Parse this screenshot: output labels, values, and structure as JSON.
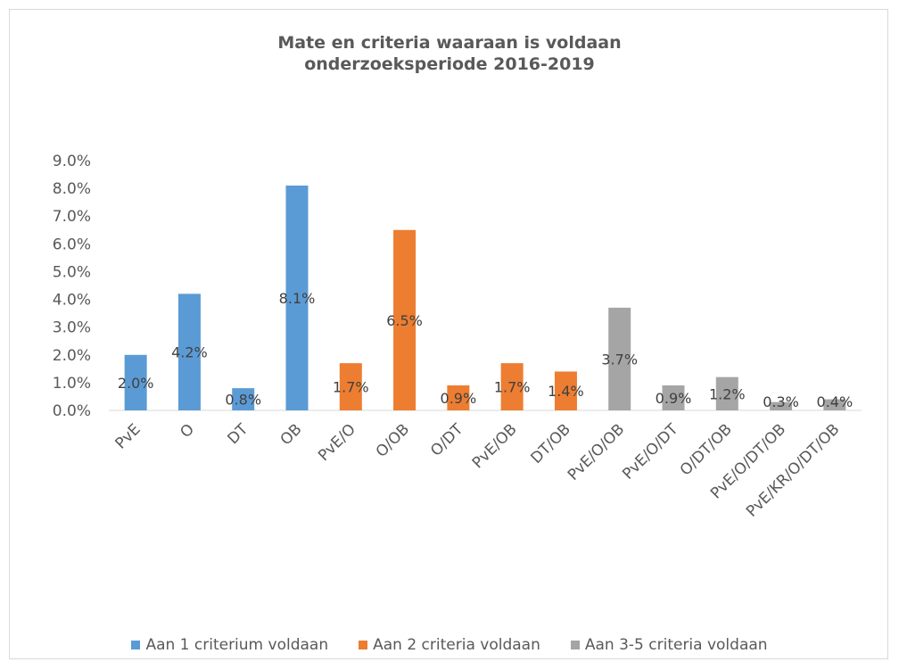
{
  "chart_data": {
    "type": "bar",
    "title": "Mate en criteria waaraan is voldaan\nonderzoeksperiode 2016-2019",
    "title_lines": [
      "Mate en criteria waaraan is voldaan",
      "onderzoeksperiode 2016-2019"
    ],
    "xlabel": "",
    "ylabel": "",
    "ylim": [
      0,
      9
    ],
    "y_ticks": [
      "0.0%",
      "1.0%",
      "2.0%",
      "3.0%",
      "4.0%",
      "5.0%",
      "6.0%",
      "7.0%",
      "8.0%",
      "9.0%"
    ],
    "grid": false,
    "legend_position": "bottom",
    "categories": [
      "PvE",
      "O",
      "DT",
      "OB",
      "PvE/O",
      "O/OB",
      "O/DT",
      "PvE/OB",
      "DT/OB",
      "PvE/O/OB",
      "PvE/O/DT",
      "O/DT/OB",
      "PvE/O/DT/OB",
      "PvE/KR/O/DT/OB"
    ],
    "values": [
      2.0,
      4.2,
      0.8,
      8.1,
      1.7,
      6.5,
      0.9,
      1.7,
      1.4,
      3.7,
      0.9,
      1.2,
      0.3,
      0.4
    ],
    "data_labels": [
      "2.0%",
      "4.2%",
      "0.8%",
      "8.1%",
      "1.7%",
      "6.5%",
      "0.9%",
      "1.7%",
      "1.4%",
      "3.7%",
      "0.9%",
      "1.2%",
      "0.3%",
      "0.4%"
    ],
    "group": [
      0,
      0,
      0,
      0,
      1,
      1,
      1,
      1,
      1,
      2,
      2,
      2,
      2,
      2
    ],
    "series": [
      {
        "name": "Aan 1 criterium voldaan",
        "color": "#5b9bd5"
      },
      {
        "name": "Aan 2 criteria voldaan",
        "color": "#ed7d31"
      },
      {
        "name": "Aan 3-5 criteria voldaan",
        "color": "#a5a5a5"
      }
    ]
  }
}
